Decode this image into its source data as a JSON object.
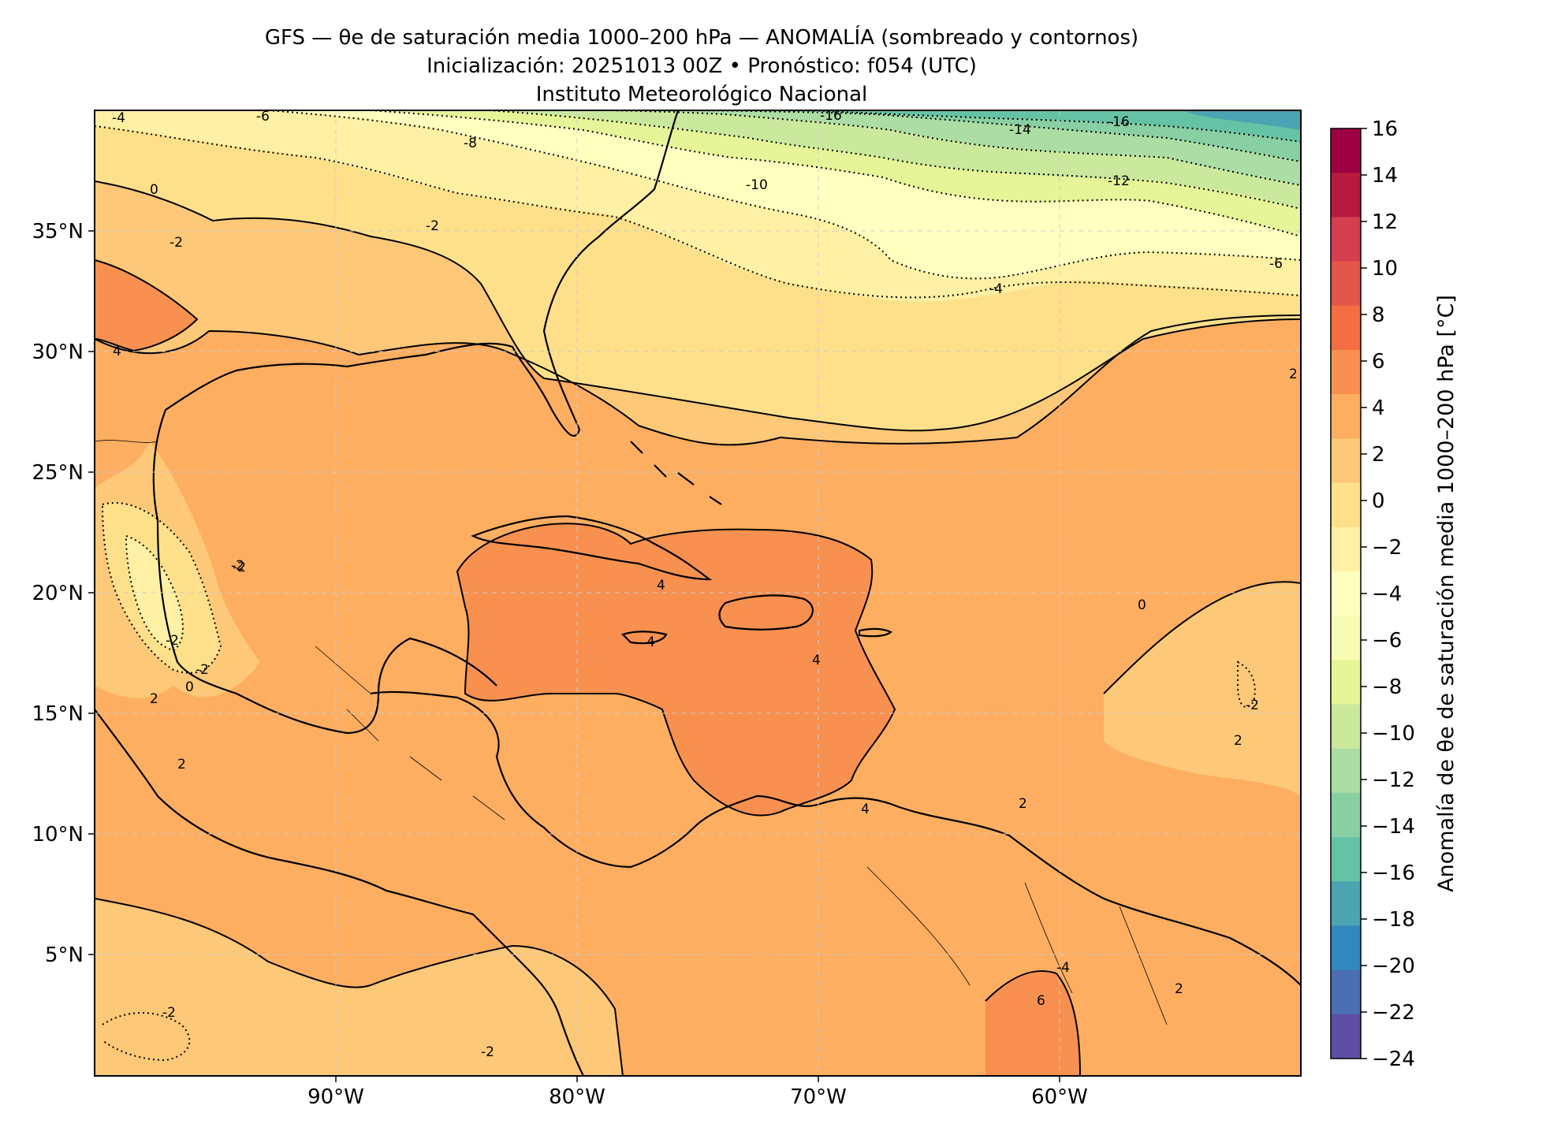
{
  "header": {
    "title": "GFS — θe de saturación media 1000–200 hPa — ANOMALÍA (sombreado y contornos)",
    "subtitle": "Inicialización: 20251013 00Z   •   Pronóstico: f054 (UTC)",
    "institution": "Instituto Meteorológico Nacional"
  },
  "map": {
    "extent": {
      "lon_min": -100,
      "lon_max": -50,
      "lat_min": 0,
      "lat_max": 40
    },
    "lat_ticks": [
      "35°N",
      "30°N",
      "25°N",
      "20°N",
      "15°N",
      "10°N",
      "5°N"
    ],
    "lon_ticks": [
      "90°W",
      "80°W",
      "70°W",
      "60°W"
    ],
    "grid": "dashed-light",
    "contour_labels": [
      "-4",
      "-6",
      "-8",
      "-16",
      "-14",
      "-16",
      "-10",
      "-12",
      "0",
      "-2",
      "-2",
      "4",
      "-6",
      "-4",
      "-2",
      "4",
      "4",
      "4",
      "0",
      "-2",
      "-2",
      "0",
      "4",
      "2",
      "2",
      "2",
      "2",
      "-2",
      "2",
      "-2",
      "-2",
      "-2",
      "6",
      "-4",
      "2"
    ]
  },
  "colorbar": {
    "label": "Anomalía de θe de saturación media 1000–200 hPa [°C]",
    "ticks": [
      "16",
      "14",
      "12",
      "10",
      "8",
      "6",
      "4",
      "2",
      "0",
      "−2",
      "−4",
      "−6",
      "−8",
      "−10",
      "−12",
      "−14",
      "−16",
      "−18",
      "−20",
      "−22",
      "−24"
    ],
    "colors": [
      "#9e0142",
      "#b8193f",
      "#d53e4f",
      "#e45649",
      "#f46d43",
      "#f8904f",
      "#fdae61",
      "#fdc877",
      "#fee08b",
      "#fff0a4",
      "#ffffbf",
      "#f7fcb4",
      "#e6f598",
      "#cbe99d",
      "#abdda4",
      "#88cfa4",
      "#66c2a5",
      "#4ba4b1",
      "#3288bd",
      "#4a6fb2",
      "#5e4fa2"
    ]
  }
}
